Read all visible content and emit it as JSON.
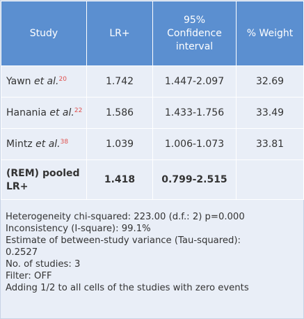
{
  "table": {
    "headers": {
      "study": "Study",
      "lr": "LR+",
      "ci_line1": "95%",
      "ci_line2": "Confidence",
      "ci_line3": "interval",
      "weight": "% Weight"
    },
    "rows": [
      {
        "author": "Yawn",
        "etal": "et al.",
        "ref": "20",
        "lr": "1.742",
        "ci": "1.447-2.097",
        "weight": "32.69"
      },
      {
        "author": "Hanania",
        "etal": "et al.",
        "ref": "22",
        "lr": "1.586",
        "ci": "1.433-1.756",
        "weight": "33.49"
      },
      {
        "author": "Mintz",
        "etal": "et al.",
        "ref": "38",
        "lr": "1.039",
        "ci": "1.006-1.073",
        "weight": "33.81"
      }
    ],
    "pooled": {
      "label_line1": "(REM) pooled",
      "label_line2": "LR+",
      "lr": "1.418",
      "ci": "0.799-2.515",
      "weight": ""
    }
  },
  "notes": [
    "Heterogeneity chi-squared: 223.00 (d.f.: 2) p=0.000",
    "Inconsistency (I-square): 99.1%",
    "Estimate of between-study variance (Tau-squared):",
    "0.2527",
    "No. of studies: 3",
    "Filter: OFF",
    "Adding 1/2 to all cells of the studies with zero events"
  ],
  "colors": {
    "header_bg": "#5b8fd0",
    "cell_bg": "#e9eef7",
    "reference_color": "#e0504d"
  }
}
